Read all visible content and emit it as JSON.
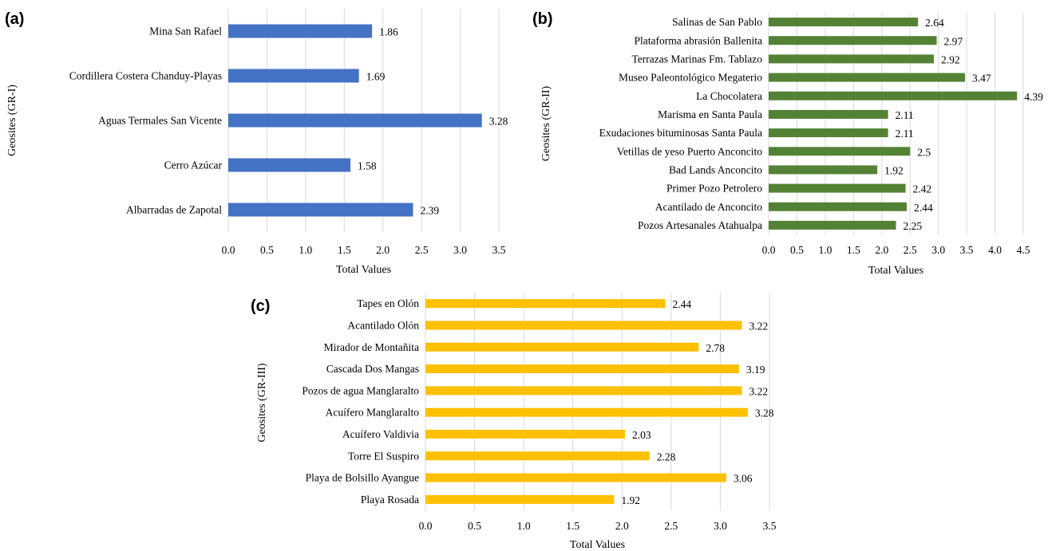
{
  "chart_data": [
    {
      "panel": "(a)",
      "type": "bar",
      "orientation": "horizontal",
      "color": "#4472c4",
      "categories": [
        "Mina San Rafael",
        "Cordillera Costera Chanduy-Playas",
        "Aguas Termales San Vicente",
        "Cerro Azúcar",
        "Albarradas de Zapotal"
      ],
      "values": [
        1.86,
        1.69,
        3.28,
        1.58,
        2.39
      ],
      "value_labels": [
        "1.86",
        "1.69",
        "3.28",
        "1.58",
        "2.39"
      ],
      "xlabel": "Total Values",
      "ylabel": "Geosites (GR-I)",
      "xlim": [
        0,
        3.5
      ],
      "xticks": [
        "0.0",
        "0.5",
        "1.0",
        "1.5",
        "2.0",
        "2.5",
        "3.0",
        "3.5"
      ],
      "grid": true
    },
    {
      "panel": "(b)",
      "type": "bar",
      "orientation": "horizontal",
      "color": "#548235",
      "categories": [
        "Salinas de San Pablo",
        "Plataforma abrasión Ballenita",
        "Terrazas Marinas Fm. Tablazo",
        "Museo Paleontológico Megaterio",
        "La Chocolatera",
        "Marisma en Santa Paula",
        "Exudaciones bituminosas Santa Paula",
        "Vetillas de yeso Puerto Anconcito",
        "Bad Lands Anconcito",
        "Primer Pozo Petrolero",
        "Acantilado de Anconcito",
        "Pozos Artesanales Atahualpa"
      ],
      "values": [
        2.64,
        2.97,
        2.92,
        3.47,
        4.39,
        2.11,
        2.11,
        2.5,
        1.92,
        2.42,
        2.44,
        2.25
      ],
      "value_labels": [
        "2.64",
        "2.97",
        "2.92",
        "3.47",
        "4.39",
        "2.11",
        "2.11",
        "2.5",
        "1.92",
        "2.42",
        "2.44",
        "2.25"
      ],
      "xlabel": "Total Values",
      "ylabel": "Geosites (GR-II)",
      "xlim": [
        0,
        4.5
      ],
      "xticks": [
        "0.0",
        "0.5",
        "1.0",
        "1.5",
        "2.0",
        "2.5",
        "3.0",
        "3.5",
        "4.0",
        "4.5"
      ],
      "grid": true
    },
    {
      "panel": "(c)",
      "type": "bar",
      "orientation": "horizontal",
      "color": "#ffc000",
      "categories": [
        "Tapes en Olón",
        "Acantilado Olón",
        "Mirador de Montañita",
        "Cascada Dos Mangas",
        "Pozos de agua Manglaralto",
        "Acuífero Manglaralto",
        "Acuífero Valdivia",
        "Torre El Suspiro",
        "Playa de Bolsillo Ayangue",
        "Playa Rosada"
      ],
      "values": [
        2.44,
        3.22,
        2.78,
        3.19,
        3.22,
        3.28,
        2.03,
        2.28,
        3.06,
        1.92
      ],
      "value_labels": [
        "2.44",
        "3.22",
        "2.78",
        "3.19",
        "3.22",
        "3.28",
        "2.03",
        "2.28",
        "3.06",
        "1.92"
      ],
      "xlabel": "Total Values",
      "ylabel": "Geosites (GR-III)",
      "xlim": [
        0,
        3.5
      ],
      "xticks": [
        "0.0",
        "0.5",
        "1.0",
        "1.5",
        "2.0",
        "2.5",
        "3.0",
        "3.5"
      ],
      "grid": true
    }
  ]
}
